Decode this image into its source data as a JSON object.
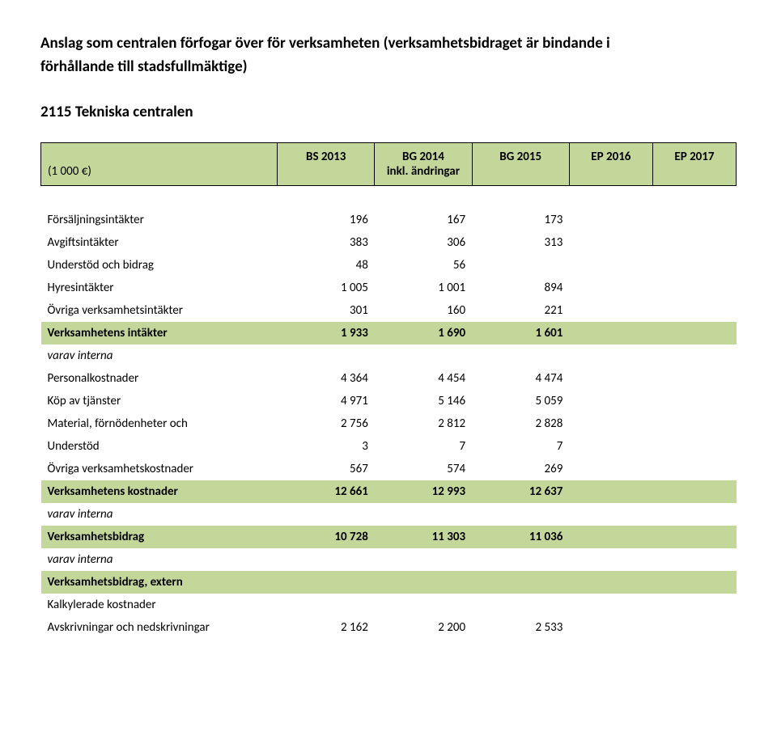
{
  "title_line1": "Anslag som centralen förfogar över för verksamheten (verksamhetsbidraget är bindande i",
  "title_line2": "förhållande till stadsfullmäktige)",
  "subheading": "2115 Tekniska centralen",
  "header": {
    "unit": "(1 000 €)",
    "cols": [
      "BS 2013",
      "BG 2014",
      "BG 2015",
      "EP 2016",
      "EP 2017"
    ],
    "note_col2": "inkl. ändringar"
  },
  "rows": [
    {
      "type": "data",
      "label": "Försäljningsintäkter",
      "vals": [
        "196",
        "167",
        "173",
        "",
        ""
      ]
    },
    {
      "type": "data",
      "label": "Avgiftsintäkter",
      "vals": [
        "383",
        "306",
        "313",
        "",
        ""
      ]
    },
    {
      "type": "data",
      "label": "Understöd och bidrag",
      "vals": [
        "48",
        "56",
        "",
        "",
        ""
      ]
    },
    {
      "type": "data",
      "label": "Hyresintäkter",
      "vals": [
        "1 005",
        "1 001",
        "894",
        "",
        ""
      ]
    },
    {
      "type": "data",
      "label": "Övriga  verksamhetsintäkter",
      "vals": [
        "301",
        "160",
        "221",
        "",
        ""
      ]
    },
    {
      "type": "hl",
      "label": "Verksamhetens intäkter",
      "vals": [
        "1 933",
        "1 690",
        "1 601",
        "",
        ""
      ]
    },
    {
      "type": "italic",
      "label": "varav interna",
      "vals": [
        "",
        "",
        "",
        "",
        ""
      ]
    },
    {
      "type": "data",
      "label": "Personalkostnader",
      "vals": [
        "4 364",
        "4 454",
        "4 474",
        "",
        ""
      ]
    },
    {
      "type": "data",
      "label": "Köp av tjänster",
      "vals": [
        "4 971",
        "5 146",
        "5 059",
        "",
        ""
      ]
    },
    {
      "type": "data",
      "label": "Material, förnödenheter och",
      "vals": [
        "2 756",
        "2 812",
        "2 828",
        "",
        ""
      ]
    },
    {
      "type": "data",
      "label": "Understöd",
      "vals": [
        "3",
        "7",
        "7",
        "",
        ""
      ]
    },
    {
      "type": "data",
      "label": "Övriga verksamhetskostnader",
      "vals": [
        "567",
        "574",
        "269",
        "",
        ""
      ]
    },
    {
      "type": "hl",
      "label": "Verksamhetens kostnader",
      "vals": [
        "12 661",
        "12 993",
        "12 637",
        "",
        ""
      ]
    },
    {
      "type": "italic",
      "label": "varav interna",
      "vals": [
        "",
        "",
        "",
        "",
        ""
      ]
    },
    {
      "type": "hl",
      "label": "Verksamhetsbidrag",
      "vals": [
        "10 728",
        "11 303",
        "11 036",
        "",
        ""
      ]
    },
    {
      "type": "italic",
      "label": "varav interna",
      "vals": [
        "",
        "",
        "",
        "",
        ""
      ]
    },
    {
      "type": "hl",
      "label": "Verksamhetsbidrag, extern",
      "vals": [
        "",
        "",
        "",
        "",
        ""
      ]
    },
    {
      "type": "data",
      "label": "Kalkylerade kostnader",
      "vals": [
        "",
        "",
        "",
        "",
        ""
      ]
    },
    {
      "type": "data",
      "label": "Avskrivningar och nedskrivningar",
      "vals": [
        "2 162",
        "2 200",
        "2 533",
        "",
        ""
      ]
    }
  ],
  "colors": {
    "highlight": "#c4d79b",
    "background": "#ffffff",
    "text": "#000000"
  }
}
